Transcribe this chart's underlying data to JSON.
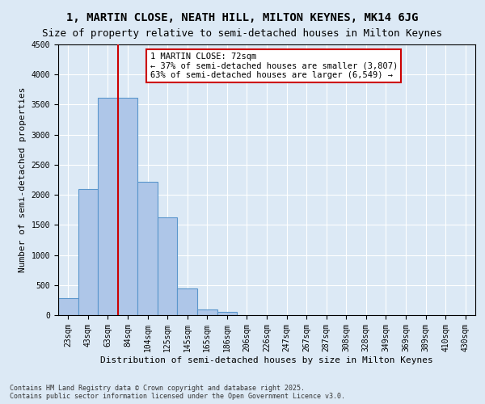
{
  "title": "1, MARTIN CLOSE, NEATH HILL, MILTON KEYNES, MK14 6JG",
  "subtitle": "Size of property relative to semi-detached houses in Milton Keynes",
  "xlabel": "Distribution of semi-detached houses by size in Milton Keynes",
  "ylabel": "Number of semi-detached properties",
  "footer": "Contains HM Land Registry data © Crown copyright and database right 2025.\nContains public sector information licensed under the Open Government Licence v3.0.",
  "bar_labels": [
    "23sqm",
    "43sqm",
    "63sqm",
    "84sqm",
    "104sqm",
    "125sqm",
    "145sqm",
    "165sqm",
    "186sqm",
    "206sqm",
    "226sqm",
    "247sqm",
    "267sqm",
    "287sqm",
    "308sqm",
    "328sqm",
    "349sqm",
    "369sqm",
    "389sqm",
    "410sqm",
    "430sqm"
  ],
  "bar_values": [
    280,
    2100,
    3620,
    3620,
    2220,
    1630,
    440,
    90,
    50,
    0,
    0,
    0,
    0,
    0,
    0,
    0,
    0,
    0,
    0,
    0,
    0
  ],
  "bar_color": "#aec6e8",
  "bar_edge_color": "#5a96cc",
  "property_size": 72,
  "annotation_title": "1 MARTIN CLOSE: 72sqm",
  "annotation_line1": "← 37% of semi-detached houses are smaller (3,807)",
  "annotation_line2": "63% of semi-detached houses are larger (6,549) →",
  "annotation_box_color": "#ffffff",
  "annotation_box_edge": "#cc0000",
  "vline_x": 2.5,
  "ylim": [
    0,
    4500
  ],
  "yticks": [
    0,
    500,
    1000,
    1500,
    2000,
    2500,
    3000,
    3500,
    4000,
    4500
  ],
  "bg_color": "#dce9f5",
  "plot_bg_color": "#dce9f5",
  "grid_color": "#ffffff",
  "vline_color": "#cc0000",
  "title_fontsize": 10,
  "subtitle_fontsize": 9,
  "xlabel_fontsize": 8,
  "ylabel_fontsize": 8,
  "tick_fontsize": 7,
  "annotation_fontsize": 7.5,
  "footer_fontsize": 6
}
